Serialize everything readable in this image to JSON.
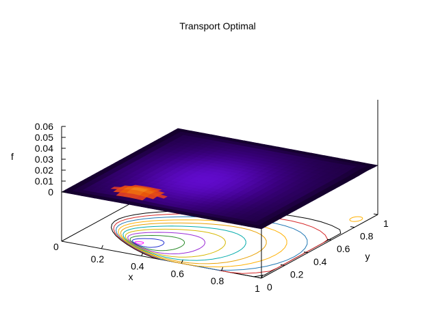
{
  "chart_data": {
    "type": "surface3d",
    "title": "Transport Optimal",
    "xlabel": "x",
    "ylabel": "y",
    "zlabel": "f",
    "x_ticks": [
      "0.2",
      "0.4",
      "0.6",
      "0.8",
      "1"
    ],
    "y_ticks": [
      "0",
      "0.2",
      "0.4",
      "0.6",
      "0.8",
      "1"
    ],
    "z_ticks": [
      "0",
      "0.01",
      "0.02",
      "0.03",
      "0.04",
      "0.05",
      "0.06"
    ],
    "xlim": [
      0,
      1
    ],
    "ylim": [
      0,
      1
    ],
    "zlim": [
      0,
      0.06
    ],
    "base_label": "0",
    "peak": {
      "x": 0.3,
      "y": 0.15,
      "f": 0.004
    },
    "secondary_peak": {
      "x": 0.95,
      "y": 0.9
    },
    "palette": [
      "#000000",
      "#3b0080",
      "#7a12ff",
      "#c21d4a",
      "#e8540a",
      "#ffcc33"
    ],
    "contour_colors": [
      "#000000",
      "#d62728",
      "#1f77b4",
      "#ffb000",
      "#e8a000",
      "#00aaaa",
      "#d6b800",
      "#9a2bd6",
      "#2a8a2a",
      "#1f2fd0",
      "#ff00ff"
    ],
    "grid": false,
    "legend": "none"
  }
}
